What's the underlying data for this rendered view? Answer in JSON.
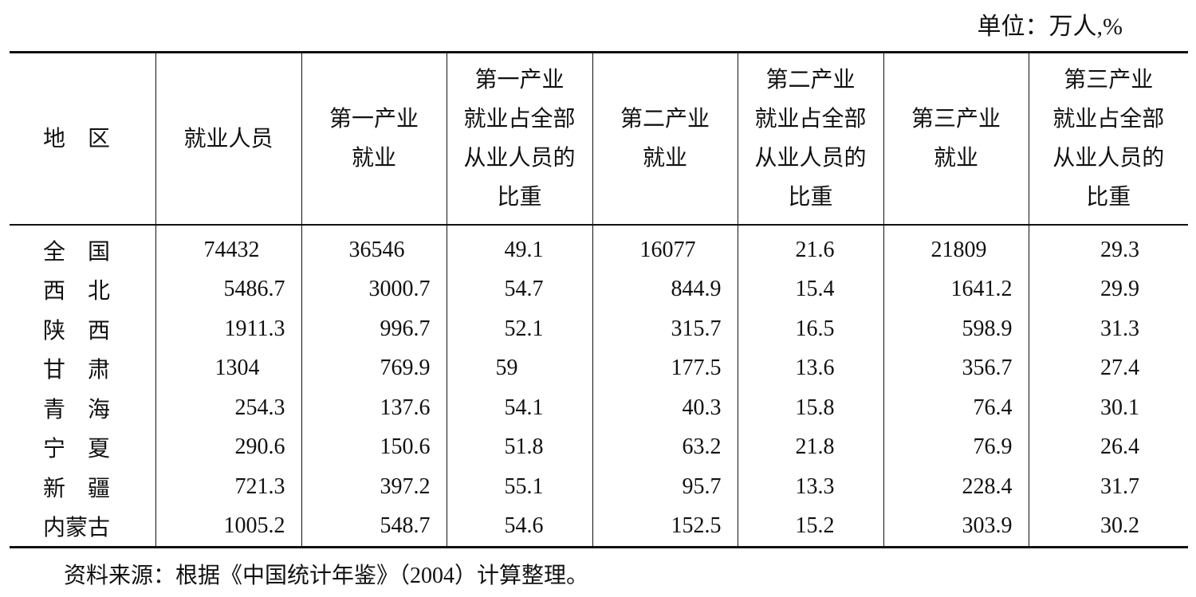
{
  "unit": "单位：万人,%",
  "table": {
    "header": [
      "地　区",
      "就业人员",
      "第一产业\n就业",
      "第一产业\n就业占全部\n从业人员的\n比重",
      "第二产业\n就业",
      "第二产业\n就业占全部\n从业人员的\n比重",
      "第三产业\n就业",
      "第三产业\n就业占全部\n从业人员的\n比重"
    ],
    "rows": [
      [
        "全　国",
        "74432",
        "36546",
        "49.1",
        "16077",
        "21.6",
        "21809",
        "29.3"
      ],
      [
        "西　北",
        "5486.7",
        "3000.7",
        "54.7",
        "844.9",
        "15.4",
        "1641.2",
        "29.9"
      ],
      [
        "陕　西",
        "1911.3",
        "996.7",
        "52.1",
        "315.7",
        "16.5",
        "598.9",
        "31.3"
      ],
      [
        "甘　肃",
        "1304",
        "769.9",
        "59",
        "177.5",
        "13.6",
        "356.7",
        "27.4"
      ],
      [
        "青　海",
        "254.3",
        "137.6",
        "54.1",
        "40.3",
        "15.8",
        "76.4",
        "30.1"
      ],
      [
        "宁　夏",
        "290.6",
        "150.6",
        "51.8",
        "63.2",
        "21.8",
        "76.9",
        "26.4"
      ],
      [
        "新　疆",
        "721.3",
        "397.2",
        "55.1",
        "95.7",
        "13.3",
        "228.4",
        "31.7"
      ],
      [
        "内蒙古",
        "1005.2",
        "548.7",
        "54.6",
        "152.5",
        "15.2",
        "303.9",
        "30.2"
      ]
    ]
  },
  "note": "资料来源：根据《中国统计年鉴》（2004）计算整理。"
}
